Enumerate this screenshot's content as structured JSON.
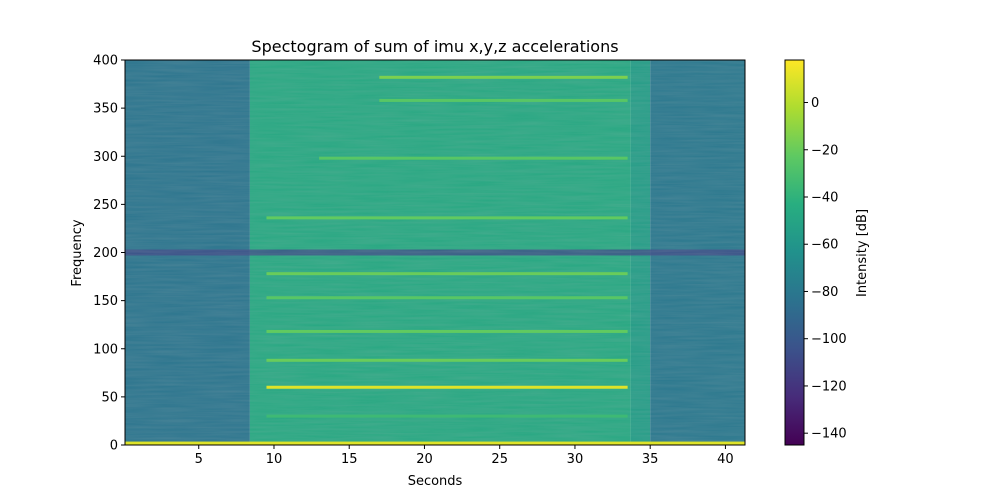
{
  "chart_data": {
    "type": "heatmap",
    "title": "Spectogram of sum of imu x,y,z accelerations",
    "xlabel": "Seconds",
    "ylabel": "Frequency",
    "xlim": [
      0.1,
      41.3
    ],
    "ylim": [
      0,
      400
    ],
    "xticks": [
      5,
      10,
      15,
      20,
      25,
      30,
      35,
      40
    ],
    "yticks": [
      0,
      50,
      100,
      150,
      200,
      250,
      300,
      350,
      400
    ],
    "colormap": "viridis",
    "colorbar": {
      "label": "Intensity [dB]",
      "range": [
        -145,
        18
      ],
      "ticks": [
        0,
        -20,
        -40,
        -60,
        -80,
        -100,
        -120,
        -140
      ]
    },
    "background": [
      {
        "t_start": 0.1,
        "t_end": 8.4,
        "level_db": -82
      },
      {
        "t_start": 8.4,
        "t_end": 33.7,
        "level_db": -47
      },
      {
        "t_start": 33.7,
        "t_end": 35.0,
        "level_db": -55
      },
      {
        "t_start": 35.0,
        "t_end": 41.3,
        "level_db": -80
      }
    ],
    "dark_band": {
      "frequency": 200,
      "level_db": -110
    },
    "harmonic_lines": [
      {
        "frequency": 2,
        "t_start": 0.1,
        "t_end": 41.3,
        "level_db": 10
      },
      {
        "frequency": 30,
        "t_start": 9.5,
        "t_end": 33.5,
        "level_db": -35
      },
      {
        "frequency": 60,
        "t_start": 9.5,
        "t_end": 33.5,
        "level_db": 10
      },
      {
        "frequency": 88,
        "t_start": 9.5,
        "t_end": 33.5,
        "level_db": -20
      },
      {
        "frequency": 118,
        "t_start": 9.5,
        "t_end": 33.5,
        "level_db": -22
      },
      {
        "frequency": 153,
        "t_start": 9.5,
        "t_end": 33.5,
        "level_db": -25
      },
      {
        "frequency": 178,
        "t_start": 9.5,
        "t_end": 33.5,
        "level_db": -20
      },
      {
        "frequency": 236,
        "t_start": 9.5,
        "t_end": 33.5,
        "level_db": -22
      },
      {
        "frequency": 298,
        "t_start": 13.0,
        "t_end": 33.5,
        "level_db": -25
      },
      {
        "frequency": 358,
        "t_start": 17.0,
        "t_end": 33.5,
        "level_db": -25
      },
      {
        "frequency": 382,
        "t_start": 17.0,
        "t_end": 33.5,
        "level_db": -15
      }
    ]
  }
}
